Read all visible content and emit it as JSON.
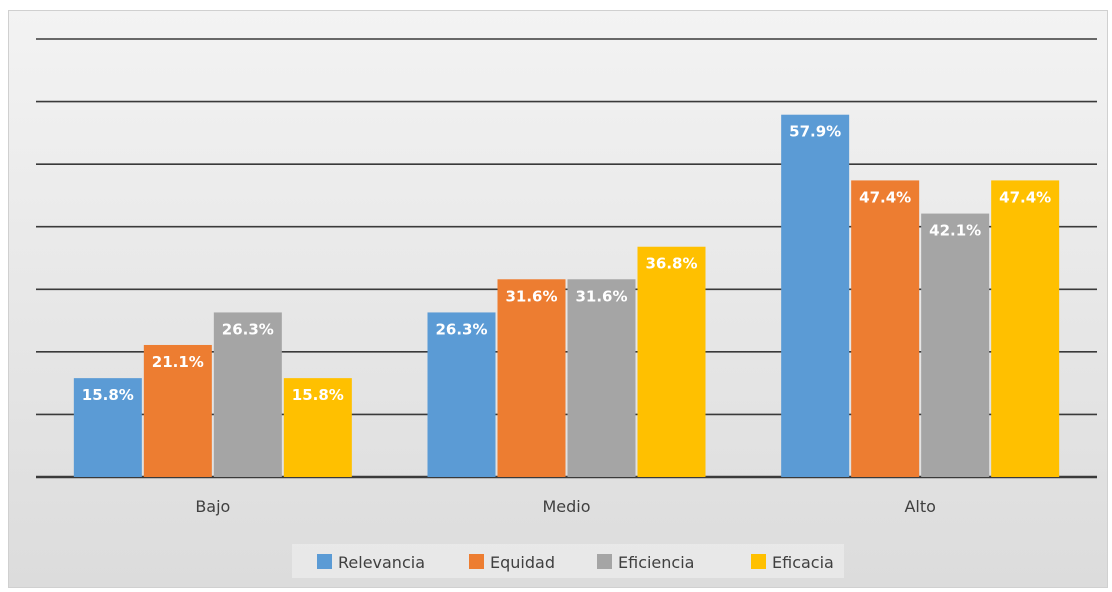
{
  "chart_data": {
    "type": "bar",
    "categories": [
      "Bajo",
      "Medio",
      "Alto"
    ],
    "series": [
      {
        "name": "Relevancia",
        "values": [
          15.8,
          26.3,
          57.9
        ],
        "labels": [
          "15.8%",
          "26.3%",
          "57.9%"
        ],
        "color": "#5b9bd5"
      },
      {
        "name": "Equidad",
        "values": [
          21.1,
          31.6,
          47.4
        ],
        "labels": [
          "21.1%",
          "31.6%",
          "47.4%"
        ],
        "color": "#ed7d31"
      },
      {
        "name": "Eficiencia",
        "values": [
          26.3,
          31.6,
          42.1
        ],
        "labels": [
          "26.3%",
          "31.6%",
          "42.1%"
        ],
        "color": "#a5a5a5"
      },
      {
        "name": "Eficacia",
        "values": [
          15.8,
          36.8,
          47.4
        ],
        "labels": [
          "15.8%",
          "36.8%",
          "47.4%"
        ],
        "color": "#ffc000"
      }
    ],
    "ylim": [
      0,
      70
    ],
    "grid": true,
    "legend_position": "bottom"
  }
}
